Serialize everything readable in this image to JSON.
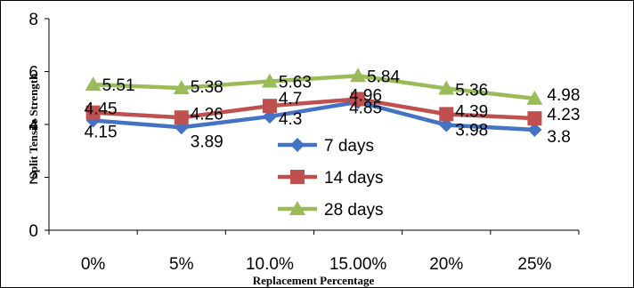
{
  "chart_data": {
    "type": "line",
    "title": "",
    "xlabel": "Replacement Percentage",
    "ylabel": "Split Tensile Strength",
    "categories": [
      "0%",
      "5%",
      "10.0%",
      "15.00%",
      "20%",
      "25%"
    ],
    "ylim": [
      0,
      8
    ],
    "yticks": [
      "0",
      "2",
      "4",
      "6",
      "8"
    ],
    "grid": false,
    "legend_position": "center",
    "series": [
      {
        "name": "7 days",
        "color": "#4472C4",
        "marker": "diamond",
        "values": [
          4.15,
          3.89,
          4.3,
          4.85,
          3.98,
          3.8
        ],
        "labels": [
          "4.15",
          "3.89",
          "4.3",
          "4.85",
          "3.98",
          "3.8"
        ]
      },
      {
        "name": "14 days",
        "color": "#C0504D",
        "marker": "square",
        "values": [
          4.45,
          4.26,
          4.7,
          4.96,
          4.39,
          4.23
        ],
        "labels": [
          "4.45",
          "4.26",
          "4.7",
          "4.96",
          "4.39",
          "4.23"
        ]
      },
      {
        "name": "28 days",
        "color": "#9BBB59",
        "marker": "triangle",
        "values": [
          5.51,
          5.38,
          5.63,
          5.84,
          5.36,
          4.98
        ],
        "labels": [
          "5.51",
          "5.38",
          "5.63",
          "5.84",
          "5.36",
          "4.98"
        ]
      }
    ]
  }
}
